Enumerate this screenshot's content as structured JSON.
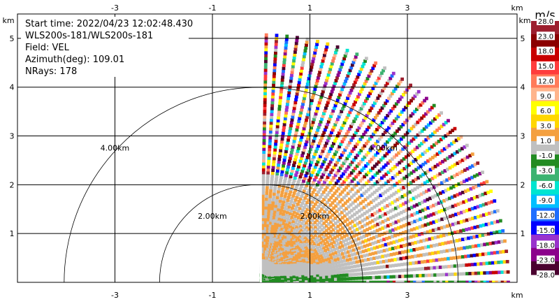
{
  "info": {
    "start_time": "Start time: 2022/04/23 12:02:48.430",
    "instrument": "WLS200s-181/WLS200s-181",
    "field": "Field: VEL",
    "azimuth": "Azimuth(deg): 109.01",
    "nrays": "NRays: 178"
  },
  "colorbar": {
    "unit": "m/s",
    "ticks": [
      "28.0",
      "23.0",
      "18.0",
      "15.0",
      "12.0",
      "9.0",
      "6.0",
      "3.0",
      "1.0",
      "-1.0",
      "-3.0",
      "-6.0",
      "-9.0",
      "-12.0",
      "-15.0",
      "-18.0",
      "-23.0",
      "-28.0"
    ],
    "colors": [
      "#9c1f2e",
      "#8b0000",
      "#c80000",
      "#ff3c3c",
      "#ff7b5a",
      "#ffb48c",
      "#ffff00",
      "#ffd700",
      "#f4a040",
      "#c0c0c0",
      "#228b22",
      "#3cb371",
      "#00e5d0",
      "#00bfff",
      "#1e6eff",
      "#0000ff",
      "#9932cc",
      "#8b008b",
      "#4b0030"
    ]
  },
  "chart_data": {
    "type": "heatmap",
    "title": "",
    "xlabel": "km",
    "ylabel": "km",
    "x_ticks": [
      "-3",
      "-1",
      "1",
      "3"
    ],
    "y_ticks": [
      "1",
      "2",
      "3",
      "4",
      "5"
    ],
    "xlim": [
      -5.0,
      5.25
    ],
    "ylim": [
      0,
      5.5
    ],
    "range_rings": [
      {
        "label": "2.00km",
        "radius_km": 2.0
      },
      {
        "label": "4.00km",
        "radius_km": 4.0
      },
      {
        "label": "2.00km",
        "radius_km": 2.0
      },
      {
        "label": "4.00km",
        "radius_km": 4.0
      }
    ],
    "sector": {
      "x_min_km": 0.0,
      "max_range_km": 5.1
    },
    "layers": [
      {
        "description_value": "-1.0 to 1.0",
        "height_km": [
          0,
          2.0
        ],
        "color_band": "gray"
      },
      {
        "description_value": "1.0 to 3.0",
        "height_km": [
          0.4,
          1.3
        ],
        "color_band": "orange"
      },
      {
        "description_value": "-3.0",
        "height_km": [
          0,
          0.15
        ],
        "color_band": "green"
      }
    ],
    "grid": true
  }
}
